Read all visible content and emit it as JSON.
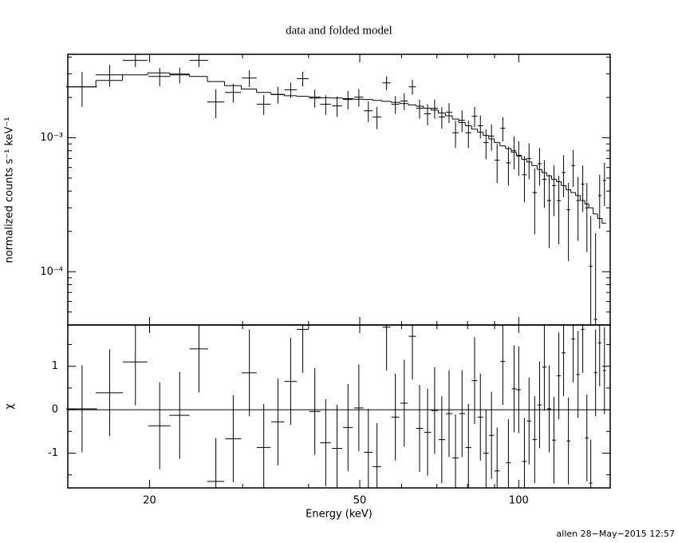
{
  "chart_data": [
    {
      "type": "spectrum",
      "title": "data and folded model",
      "ylabel": "normalized counts s⁻¹ keV⁻¹",
      "log_x": true,
      "log_y": true,
      "color": "#000000",
      "x": [
        14.9,
        16.8,
        18.8,
        20.9,
        22.8,
        24.8,
        26.7,
        28.8,
        30.9,
        32.9,
        35,
        37,
        39,
        41.1,
        43.1,
        45.3,
        47.5,
        49.8,
        51.9,
        53.9,
        56.2,
        58.4,
        60.7,
        62.9,
        64.9,
        67.2,
        69.3,
        71.5,
        73.8,
        75.9,
        78.1,
        80.3,
        82.5,
        84.6,
        86.7,
        88.8,
        91,
        93.3,
        95.6,
        98,
        100,
        102.5,
        104.6,
        107.2,
        109.5,
        111.8,
        114.2,
        116.6,
        119.1,
        121.6,
        124.2,
        126.8,
        129.5,
        132.2,
        134.6,
        136.9,
        139.8,
        142.3,
        145.3
      ],
      "x_halfwidth": 1,
      "values": [
        0.0024,
        0.00295,
        0.00378,
        0.00287,
        0.00295,
        0.00378,
        0.00185,
        0.00218,
        0.00279,
        0.00178,
        0.0021,
        0.00228,
        0.00276,
        0.00198,
        0.00178,
        0.00173,
        0.00193,
        0.00201,
        0.00159,
        0.00143,
        0.00257,
        0.00178,
        0.00188,
        0.0024,
        0.00166,
        0.00151,
        0.00166,
        0.00143,
        0.00155,
        0.00109,
        0.00135,
        0.00109,
        0.00145,
        0.00123,
        0.00092,
        0.00103,
        0.00068,
        0.00118,
        0.00065,
        0.0008,
        0.00073,
        0.00053,
        0.0007,
        0.00039,
        0.00064,
        0.00049,
        0.00034,
        0.00044,
        0.00034,
        0.00055,
        0.00029,
        0.00062,
        0.00034,
        0.00045,
        0.0003,
        0.00011,
        4.4e-05,
        0.00037,
        0.00048
      ],
      "yerr": [
        0.0007,
        0.00055,
        0.0004,
        0.00045,
        0.0004,
        0.0004,
        0.00045,
        0.00035,
        0.0004,
        0.0003,
        0.0003,
        0.0003,
        0.00035,
        0.0003,
        0.0003,
        0.0003,
        0.0003,
        0.0003,
        0.00028,
        0.00027,
        0.0003,
        0.00027,
        0.00027,
        0.0003,
        0.00027,
        0.00027,
        0.00027,
        0.00026,
        0.00026,
        0.00025,
        0.00025,
        0.00025,
        0.00025,
        0.00024,
        0.00023,
        0.00023,
        0.00022,
        0.00024,
        0.00021,
        0.00022,
        0.00021,
        0.0002,
        0.00021,
        0.0002,
        0.0002,
        0.00019,
        0.00019,
        0.00018,
        0.00018,
        0.00019,
        0.00017,
        0.00019,
        0.00017,
        0.00017,
        0.00016,
        0.00015,
        0.00015,
        0.00016,
        0.00017
      ],
      "model": [
        0.0024,
        0.00268,
        0.00295,
        0.00305,
        0.00299,
        0.00287,
        0.00263,
        0.00245,
        0.00231,
        0.00218,
        0.00211,
        0.00206,
        0.00204,
        0.00201,
        0.00199,
        0.00198,
        0.00196,
        0.00194,
        0.00193,
        0.0019,
        0.00187,
        0.00184,
        0.0018,
        0.00176,
        0.00172,
        0.00166,
        0.00161,
        0.00153,
        0.00146,
        0.00138,
        0.0013,
        0.00123,
        0.00116,
        0.0011,
        0.00104,
        0.00098,
        0.00092,
        0.00087,
        0.00083,
        0.00078,
        0.00074,
        0.00069,
        0.00066,
        0.00062,
        0.00058,
        0.00055,
        0.00052,
        0.00049,
        0.00047,
        0.00044,
        0.00041,
        0.00039,
        0.00037,
        0.00034,
        0.00032,
        0.0003,
        0.00027,
        0.00025,
        0.00023
      ],
      "xlim": [
        14,
        149
      ],
      "xticks": [
        20,
        50,
        100
      ],
      "xminor": [
        30,
        40,
        60,
        70,
        80,
        90
      ],
      "ylim": [
        4e-05,
        0.0042
      ],
      "yticks": [
        {
          "value": 0.0001,
          "label": "10⁻⁴"
        },
        {
          "value": 0.001,
          "label": "10⁻³"
        }
      ],
      "yminor": [
        5e-05,
        6e-05,
        7e-05,
        8e-05,
        9e-05,
        0.0002,
        0.0003,
        0.0004,
        0.0005,
        0.0006,
        0.0007,
        0.0008,
        0.0009,
        0.002,
        0.003,
        0.004
      ]
    },
    {
      "type": "residuals",
      "ylabel": "χ",
      "xlabel": "Energy (keV)",
      "color": "#000000",
      "values": [
        0.02,
        0.39,
        1.1,
        -0.37,
        -0.13,
        1.4,
        -1.65,
        -0.67,
        0.85,
        -0.87,
        -0.28,
        0.65,
        1.85,
        -0.04,
        -0.76,
        -0.89,
        -0.41,
        0.04,
        -0.98,
        -1.31,
        1.9,
        -0.17,
        0.15,
        1.69,
        -0.43,
        -0.52,
        -0.02,
        -0.69,
        -0.09,
        -1.11,
        -0.09,
        -0.87,
        0.67,
        -0.17,
        -1,
        -0.59,
        -1.41,
        1.11,
        -1.22,
        0.48,
        0.46,
        -1.19,
        -0.26,
        -0.69,
        0.11,
        0.98,
        0.02,
        -0.7,
        0.78,
        1.31,
        -0.72,
        1.63,
        0.81,
        1.85,
        -0.65,
        -1.69,
        0.85,
        1.54,
        0.9
      ],
      "error": 1,
      "reference_line": {
        "value": 0,
        "color": "#22cc22"
      },
      "ylim": [
        -1.8,
        1.95
      ],
      "yticks": [
        -1,
        0,
        1
      ],
      "yminor": [
        -1.5,
        -0.5,
        0.5,
        1.5
      ]
    }
  ],
  "footer": "allen 28−May−2015 12:57"
}
